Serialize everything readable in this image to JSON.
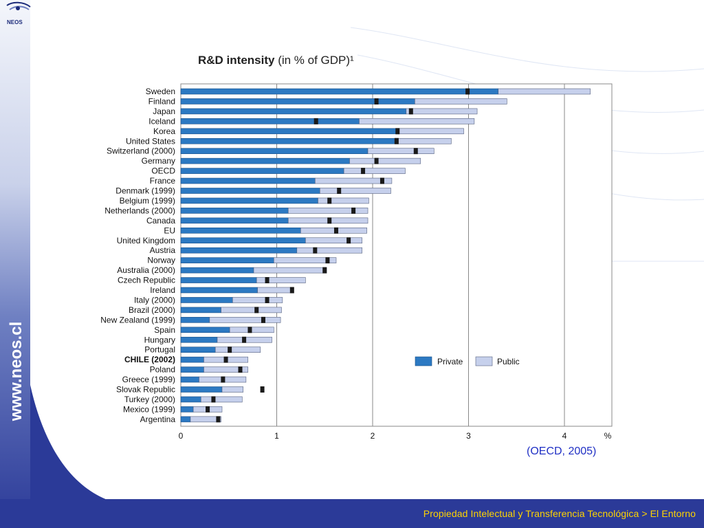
{
  "slide": {
    "footer": "Propiedad Intelectual y Transferencia Tecnológica > El Entorno",
    "side_url": "www.neos.cl",
    "logo_text": "NEOS",
    "source": "(OECD, 2005)",
    "colors": {
      "private": "#2c79c2",
      "public": "#c6d0ec",
      "marker": "#1a1a1a",
      "brand": "#2b3a98",
      "footer_text": "#ffd400"
    }
  },
  "chart_data": {
    "type": "bar",
    "orientation": "horizontal-stacked",
    "title_bold": "R&D intensity",
    "title_rest": " (in % of GDP)¹",
    "xlabel": "%",
    "xlim": [
      0,
      4.5
    ],
    "xticks": [
      0,
      1,
      2,
      3,
      4
    ],
    "legend": {
      "placement": "bottom-right",
      "private": "Private",
      "public": "Public"
    },
    "categories": [
      "Sweden",
      "Finland",
      "Japan",
      "Iceland",
      "Korea",
      "United States",
      "Switzerland (2000)",
      "Germany",
      "OECD",
      "France",
      "Denmark (1999)",
      "Belgium (1999)",
      "Netherlands (2000)",
      "Canada",
      "EU",
      "United Kingdom",
      "Austria",
      "Norway",
      "Australia (2000)",
      "Czech Republic",
      "Ireland",
      "Italy (2000)",
      "Brazil (2000)",
      "New Zealand (1999)",
      "Spain",
      "Hungary",
      "Portugal",
      "CHILE (2002)",
      "Poland",
      "Greece (1999)",
      "Slovak Republic",
      "Turkey (2000)",
      "Mexico (1999)",
      "Argentina"
    ],
    "highlight": "CHILE (2002)",
    "series": [
      {
        "name": "Private",
        "values": [
          3.31,
          2.44,
          2.35,
          1.86,
          2.25,
          2.23,
          1.95,
          1.76,
          1.7,
          1.4,
          1.45,
          1.43,
          1.12,
          1.12,
          1.25,
          1.3,
          1.21,
          0.97,
          0.76,
          0.79,
          0.8,
          0.54,
          0.42,
          0.3,
          0.51,
          0.38,
          0.36,
          0.24,
          0.24,
          0.19,
          0.43,
          0.21,
          0.13,
          0.1
        ]
      },
      {
        "name": "Public",
        "values": [
          0.96,
          0.96,
          0.74,
          1.2,
          0.7,
          0.59,
          0.69,
          0.74,
          0.64,
          0.8,
          0.74,
          0.53,
          0.83,
          0.83,
          0.69,
          0.59,
          0.68,
          0.65,
          0.76,
          0.51,
          0.35,
          0.52,
          0.63,
          0.74,
          0.46,
          0.57,
          0.47,
          0.46,
          0.46,
          0.49,
          0.22,
          0.43,
          0.3,
          0.32
        ]
      }
    ],
    "markers": [
      2.99,
      2.04,
      2.4,
      1.41,
      2.26,
      2.25,
      2.45,
      2.04,
      1.9,
      2.1,
      1.65,
      1.55,
      1.8,
      1.55,
      1.62,
      1.75,
      1.4,
      1.53,
      1.5,
      0.9,
      1.16,
      0.9,
      0.79,
      0.86,
      0.72,
      0.66,
      0.51,
      0.47,
      0.62,
      0.44,
      0.85,
      0.34,
      0.28,
      0.39
    ]
  }
}
